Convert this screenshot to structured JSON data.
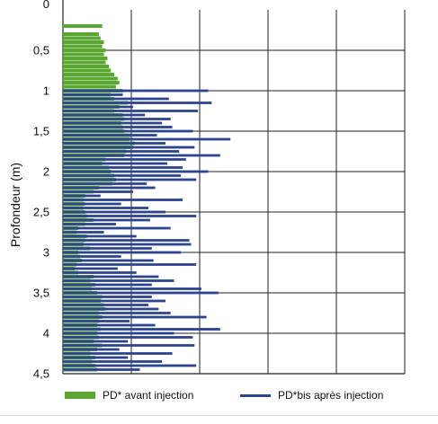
{
  "chart_data": {
    "type": "bar",
    "orientation": "horizontal",
    "ylabel": "Profondeur (m)",
    "y_ticks": [
      "0",
      "0,5",
      "1",
      "1,5",
      "2",
      "2,5",
      "3",
      "3,5",
      "4",
      "4,5"
    ],
    "y_tick_values": [
      0,
      0.5,
      1,
      1.5,
      2,
      2.5,
      3,
      3.5,
      4,
      4.5
    ],
    "ylim": [
      0,
      4.5
    ],
    "y_inverted": true,
    "xlim": [
      0,
      20
    ],
    "grid": true,
    "legend_position": "bottom",
    "series": [
      {
        "name": "PD* avant injection",
        "color": "#5aa832",
        "depths": [
          0.2,
          0.3,
          0.35,
          0.4,
          0.45,
          0.5,
          0.55,
          0.6,
          0.65,
          0.7,
          0.75,
          0.8,
          0.85,
          0.9,
          0.95,
          1.0,
          1.05,
          1.1,
          1.15,
          1.2,
          1.25,
          1.3,
          1.35,
          1.4,
          1.45,
          1.5,
          1.55,
          1.6,
          1.65,
          1.7,
          1.75,
          1.8,
          1.85,
          1.9,
          1.95,
          2.0,
          2.05,
          2.1,
          2.15,
          2.2,
          2.25,
          2.3,
          2.35,
          2.4,
          2.45,
          2.5,
          2.55,
          2.6,
          2.65,
          2.7,
          2.75,
          2.8,
          2.85,
          2.9,
          2.95,
          3.0,
          3.05,
          3.1,
          3.15,
          3.2,
          3.25,
          3.3,
          3.35,
          3.4,
          3.45,
          3.5,
          3.55,
          3.6,
          3.65,
          3.7,
          3.75,
          3.8,
          3.85,
          3.9,
          3.95,
          4.0,
          4.05,
          4.1,
          4.15,
          4.2,
          4.25,
          4.3,
          4.35,
          4.4,
          4.45
        ],
        "values": [
          2.3,
          2.1,
          2.2,
          2.4,
          2.3,
          2.5,
          2.4,
          2.6,
          2.5,
          2.7,
          2.8,
          3.0,
          3.2,
          3.3,
          3.1,
          3.5,
          2.8,
          3.0,
          3.8,
          3.3,
          3.0,
          3.5,
          3.6,
          3.4,
          3.5,
          3.6,
          4.0,
          3.9,
          4.2,
          4.1,
          3.7,
          3.6,
          2.5,
          2.3,
          2.7,
          2.8,
          3.0,
          3.1,
          2.9,
          2.1,
          1.8,
          1.3,
          1.2,
          1.3,
          1.2,
          1.3,
          1.4,
          1.8,
          1.3,
          0.9,
          0.8,
          1.4,
          1.3,
          1.2,
          1.6,
          0.9,
          1.0,
          1.1,
          0.8,
          0.7,
          0.9,
          1.8,
          1.6,
          1.9,
          1.7,
          2.0,
          2.3,
          2.2,
          2.4,
          2.5,
          2.1,
          2.3,
          2.1,
          2.0,
          2.2,
          2.0,
          2.1,
          1.8,
          2.3,
          2.0,
          1.6,
          1.9,
          1.7,
          1.9,
          2.0
        ]
      },
      {
        "name": "PD*bis après injection",
        "color": "#2d4590",
        "depths": [
          1.0,
          1.05,
          1.1,
          1.15,
          1.2,
          1.25,
          1.3,
          1.35,
          1.4,
          1.45,
          1.5,
          1.55,
          1.6,
          1.65,
          1.7,
          1.75,
          1.8,
          1.85,
          1.9,
          1.95,
          2.0,
          2.05,
          2.1,
          2.15,
          2.2,
          2.25,
          2.3,
          2.35,
          2.4,
          2.45,
          2.5,
          2.55,
          2.6,
          2.65,
          2.7,
          2.75,
          2.8,
          2.85,
          2.9,
          2.95,
          3.0,
          3.05,
          3.1,
          3.15,
          3.2,
          3.25,
          3.3,
          3.35,
          3.4,
          3.45,
          3.5,
          3.55,
          3.6,
          3.65,
          3.7,
          3.75,
          3.8,
          3.85,
          3.9,
          3.95,
          4.0,
          4.05,
          4.1,
          4.15,
          4.2,
          4.25,
          4.3,
          4.35,
          4.4,
          4.45
        ],
        "values": [
          8.5,
          3.5,
          6.2,
          8.7,
          4.1,
          7.9,
          4.8,
          6.3,
          5.8,
          6.4,
          7.6,
          5.5,
          9.8,
          6.0,
          7.7,
          6.8,
          9.2,
          7.2,
          6.1,
          7.0,
          8.5,
          6.9,
          7.8,
          4.9,
          5.4,
          4.1,
          2.2,
          7.0,
          3.4,
          5.0,
          6.0,
          7.8,
          5.1,
          3.1,
          6.3,
          2.4,
          4.3,
          7.4,
          7.5,
          5.2,
          6.9,
          3.4,
          5.3,
          7.8,
          3.2,
          4.3,
          5.6,
          6.5,
          5.2,
          8.1,
          9.1,
          5.2,
          6.0,
          5.0,
          5.6,
          6.3,
          8.4,
          3.9,
          5.4,
          9.2,
          6.5,
          7.6,
          3.8,
          7.7,
          3.3,
          6.4,
          3.8,
          5.8,
          7.8,
          4.5
        ]
      }
    ]
  }
}
